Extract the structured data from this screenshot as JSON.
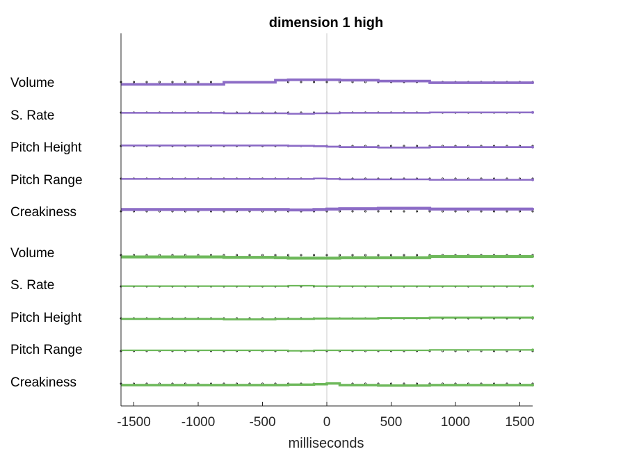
{
  "chart_data": {
    "type": "line",
    "title": "dimension  1 high",
    "xlabel": "milliseconds",
    "ylabel": "",
    "xlim": [
      -1600,
      1600
    ],
    "xticks": [
      -1500,
      -1000,
      -500,
      0,
      500,
      1000,
      1500
    ],
    "xtick_labels": [
      "-1500",
      "-1000",
      "-500",
      "0",
      "500",
      "1000",
      "1500"
    ],
    "zero_line": 0,
    "grid": false,
    "segment_edges": [
      -1600,
      -800,
      -400,
      -300,
      -100,
      0,
      100,
      400,
      800,
      1600
    ],
    "dot_step": 100,
    "groups": [
      {
        "name": "",
        "color": "#8c6cc6",
        "features": [
          {
            "label": "Volume",
            "values": [
              -0.04,
              0.01,
              0.06,
              0.07,
              0.07,
              0.07,
              0.06,
              0.04,
              0.0
            ]
          },
          {
            "label": "S. Rate",
            "values": [
              0.01,
              0.0,
              0.0,
              -0.01,
              0.0,
              0.0,
              0.01,
              0.01,
              0.02
            ]
          },
          {
            "label": "Pitch Height",
            "values": [
              0.03,
              0.03,
              0.03,
              0.02,
              0.01,
              0.0,
              -0.01,
              -0.02,
              -0.01
            ]
          },
          {
            "label": "Pitch Range",
            "values": [
              0.01,
              0.01,
              0.01,
              0.01,
              0.02,
              0.01,
              0.0,
              0.0,
              -0.01
            ]
          },
          {
            "label": "Creakiness",
            "values": [
              0.06,
              0.06,
              0.06,
              0.05,
              0.06,
              0.07,
              0.08,
              0.09,
              0.07
            ]
          }
        ]
      },
      {
        "name": "",
        "color": "#6db85a",
        "features": [
          {
            "label": "Volume",
            "values": [
              -0.06,
              -0.07,
              -0.08,
              -0.09,
              -0.09,
              -0.09,
              -0.08,
              -0.08,
              -0.05
            ]
          },
          {
            "label": "S. Rate",
            "values": [
              -0.01,
              -0.01,
              -0.01,
              0.0,
              -0.01,
              -0.01,
              -0.01,
              -0.01,
              -0.01
            ]
          },
          {
            "label": "Pitch Height",
            "values": [
              -0.03,
              -0.04,
              -0.03,
              -0.03,
              -0.02,
              -0.02,
              -0.02,
              -0.01,
              0.0
            ]
          },
          {
            "label": "Pitch Range",
            "values": [
              0.0,
              0.0,
              0.0,
              -0.01,
              0.0,
              0.0,
              0.0,
              0.0,
              0.01
            ]
          },
          {
            "label": "Creakiness",
            "values": [
              -0.05,
              -0.05,
              -0.05,
              -0.04,
              -0.03,
              -0.01,
              -0.05,
              -0.06,
              -0.05
            ]
          }
        ]
      }
    ]
  }
}
